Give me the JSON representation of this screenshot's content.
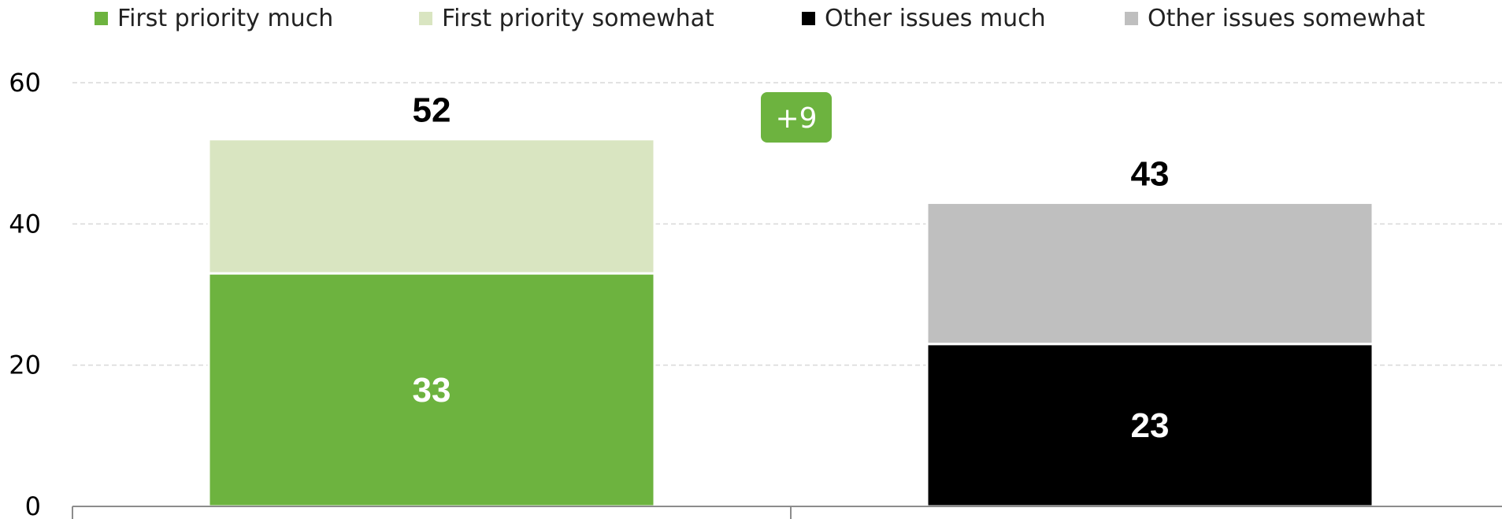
{
  "chart_data": {
    "type": "bar",
    "stacked": true,
    "categories": [
      "",
      ""
    ],
    "ylim": [
      0,
      60
    ],
    "yticks": [
      0,
      20,
      40,
      60
    ],
    "grid": true,
    "legend_position": "top",
    "legend": [
      {
        "label": "First priority much",
        "color": "#6db33f"
      },
      {
        "label": "First priority somewhat",
        "color": "#d9e5c1"
      },
      {
        "label": "Other issues much",
        "color": "#000000"
      },
      {
        "label": "Other issues somewhat",
        "color": "#bfbfbf"
      }
    ],
    "bars": [
      {
        "segments": [
          {
            "series": "First priority much",
            "value": 33,
            "color": "#6db33f",
            "label": "33",
            "label_color": "#ffffff"
          },
          {
            "series": "First priority somewhat",
            "value": 19,
            "color": "#d9e5c1"
          }
        ],
        "total": 52,
        "total_label": "52"
      },
      {
        "segments": [
          {
            "series": "Other issues much",
            "value": 23,
            "color": "#000000",
            "label": "23",
            "label_color": "#ffffff"
          },
          {
            "series": "Other issues somewhat",
            "value": 20,
            "color": "#bfbfbf"
          }
        ],
        "total": 43,
        "total_label": "43"
      }
    ],
    "annotation": {
      "text": "+9",
      "color": "#6db33f"
    }
  }
}
